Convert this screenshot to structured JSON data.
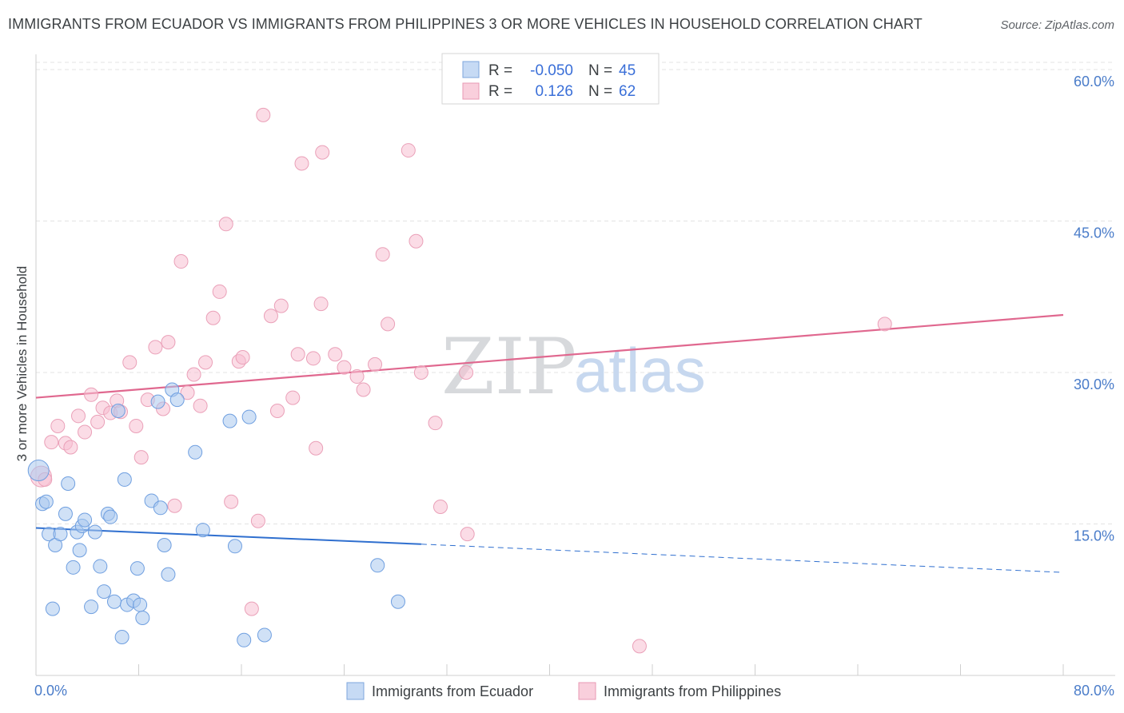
{
  "title": "IMMIGRANTS FROM ECUADOR VS IMMIGRANTS FROM PHILIPPINES 3 OR MORE VEHICLES IN HOUSEHOLD CORRELATION CHART",
  "source": "Source: ZipAtlas.com",
  "watermark": {
    "zip": "ZIP",
    "atlas": "atlas"
  },
  "legend": {
    "rows": [
      {
        "r_label": "R =",
        "r_value": "-0.050",
        "n_label": "N =",
        "n_value": "45"
      },
      {
        "r_label": "R =",
        "r_value": "0.126",
        "n_label": "N =",
        "n_value": "62"
      }
    ]
  },
  "chart_data": {
    "type": "scatter",
    "xlabel": "",
    "ylabel": "3 or more Vehicles in Household",
    "xlim": [
      0,
      80
    ],
    "ylim": [
      0,
      62
    ],
    "x_tick_labels": [
      "0.0%",
      "80.0%"
    ],
    "y_ticks": [
      15,
      30,
      45,
      60
    ],
    "y_tick_labels": [
      "15.0%",
      "30.0%",
      "45.0%",
      "60.0%"
    ],
    "grid": true,
    "legend_position": "bottom",
    "colors": {
      "ecuador_fill": "#aac8ee",
      "ecuador_line": "#2f6fcf",
      "philippines_fill": "#f7bfd1",
      "philippines_line": "#e0688f"
    },
    "series": [
      {
        "name": "Immigrants from Ecuador",
        "trend": {
          "x0": 0,
          "y0": 14.6,
          "x1": 30,
          "y1": 13.0,
          "dash_x1": 80,
          "dash_y1": 10.2
        },
        "points": [
          [
            0.2,
            20.3
          ],
          [
            0.5,
            17.0
          ],
          [
            0.8,
            17.2
          ],
          [
            1.0,
            14.0
          ],
          [
            1.3,
            6.6
          ],
          [
            1.5,
            12.9
          ],
          [
            1.9,
            14.0
          ],
          [
            2.3,
            16.0
          ],
          [
            2.5,
            19.0
          ],
          [
            2.9,
            10.7
          ],
          [
            3.2,
            14.2
          ],
          [
            3.4,
            12.4
          ],
          [
            3.6,
            14.8
          ],
          [
            3.8,
            15.4
          ],
          [
            4.3,
            6.8
          ],
          [
            4.6,
            14.2
          ],
          [
            5.0,
            10.8
          ],
          [
            5.3,
            8.3
          ],
          [
            5.6,
            16.0
          ],
          [
            5.8,
            15.7
          ],
          [
            6.1,
            7.3
          ],
          [
            6.4,
            26.2
          ],
          [
            6.7,
            3.8
          ],
          [
            6.9,
            19.4
          ],
          [
            7.1,
            7.0
          ],
          [
            7.6,
            7.4
          ],
          [
            7.9,
            10.6
          ],
          [
            8.1,
            7.0
          ],
          [
            8.3,
            5.7
          ],
          [
            9.0,
            17.3
          ],
          [
            9.5,
            27.1
          ],
          [
            9.7,
            16.6
          ],
          [
            10.0,
            12.9
          ],
          [
            10.3,
            10.0
          ],
          [
            10.6,
            28.3
          ],
          [
            11.0,
            27.3
          ],
          [
            12.4,
            22.1
          ],
          [
            13.0,
            14.4
          ],
          [
            15.1,
            25.2
          ],
          [
            15.5,
            12.8
          ],
          [
            16.2,
            3.5
          ],
          [
            16.6,
            25.6
          ],
          [
            17.8,
            4.0
          ],
          [
            26.6,
            10.9
          ],
          [
            28.2,
            7.3
          ]
        ]
      },
      {
        "name": "Immigrants from Philippines",
        "trend": {
          "x0": 0,
          "y0": 27.5,
          "x1": 80,
          "y1": 35.7
        },
        "points": [
          [
            0.4,
            19.7
          ],
          [
            0.7,
            19.4
          ],
          [
            1.2,
            23.1
          ],
          [
            1.7,
            24.7
          ],
          [
            2.3,
            23.0
          ],
          [
            2.7,
            22.6
          ],
          [
            3.3,
            25.7
          ],
          [
            3.8,
            24.1
          ],
          [
            4.3,
            27.8
          ],
          [
            4.8,
            25.1
          ],
          [
            5.2,
            26.5
          ],
          [
            5.8,
            26.0
          ],
          [
            6.3,
            27.2
          ],
          [
            6.6,
            26.1
          ],
          [
            7.3,
            31.0
          ],
          [
            7.8,
            24.7
          ],
          [
            8.2,
            21.6
          ],
          [
            8.7,
            27.3
          ],
          [
            9.3,
            32.5
          ],
          [
            9.9,
            26.4
          ],
          [
            10.3,
            33.0
          ],
          [
            10.8,
            16.8
          ],
          [
            11.3,
            41.0
          ],
          [
            11.8,
            28.0
          ],
          [
            12.3,
            29.8
          ],
          [
            12.8,
            26.7
          ],
          [
            13.2,
            31.0
          ],
          [
            13.8,
            35.4
          ],
          [
            14.3,
            38.0
          ],
          [
            14.8,
            44.7
          ],
          [
            15.2,
            17.2
          ],
          [
            15.8,
            31.1
          ],
          [
            16.1,
            31.5
          ],
          [
            16.8,
            6.6
          ],
          [
            17.3,
            15.3
          ],
          [
            17.7,
            55.5
          ],
          [
            18.3,
            35.6
          ],
          [
            18.8,
            26.2
          ],
          [
            19.1,
            36.6
          ],
          [
            20.0,
            27.5
          ],
          [
            20.4,
            31.8
          ],
          [
            20.7,
            50.7
          ],
          [
            21.6,
            31.4
          ],
          [
            21.8,
            22.5
          ],
          [
            22.2,
            36.8
          ],
          [
            22.3,
            51.8
          ],
          [
            23.3,
            31.8
          ],
          [
            24.0,
            30.5
          ],
          [
            25.0,
            29.6
          ],
          [
            25.5,
            28.3
          ],
          [
            26.4,
            30.8
          ],
          [
            27.0,
            41.7
          ],
          [
            27.4,
            34.8
          ],
          [
            29.0,
            52.0
          ],
          [
            29.6,
            43.0
          ],
          [
            30.0,
            30.0
          ],
          [
            31.1,
            25.0
          ],
          [
            31.5,
            16.7
          ],
          [
            33.5,
            30.0
          ],
          [
            33.6,
            14.0
          ],
          [
            47.0,
            2.9
          ],
          [
            66.1,
            34.8
          ]
        ]
      }
    ]
  }
}
